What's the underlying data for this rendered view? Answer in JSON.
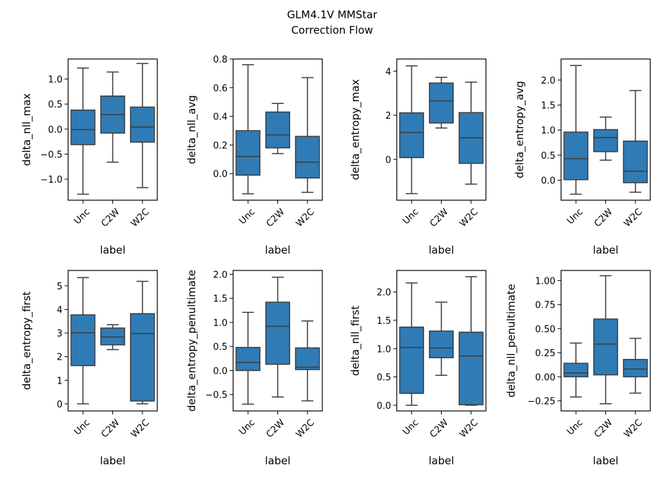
{
  "title": "GLM4.1V MMStar",
  "subtitle": "Correction Flow",
  "colors": {
    "box_fill": "#2f7bb5",
    "line": "#3d3d3d",
    "axis": "#000000"
  },
  "chart_data": [
    {
      "type": "box",
      "ylabel": "delta_nll_max",
      "xlabel": "label",
      "categories": [
        "Unc",
        "C2W",
        "W2C"
      ],
      "ylim": [
        -1.42,
        1.4
      ],
      "yticks": [
        -1.0,
        -0.5,
        0.0,
        0.5,
        1.0
      ],
      "ytick_labels": [
        "−1.0",
        "−0.5",
        "0.0",
        "0.5",
        "1.0"
      ],
      "boxes": [
        {
          "whislo": -1.3,
          "q1": -0.31,
          "med": -0.01,
          "q3": 0.38,
          "whishi": 1.22
        },
        {
          "whislo": -0.66,
          "q1": -0.08,
          "med": 0.29,
          "q3": 0.66,
          "whishi": 1.14
        },
        {
          "whislo": -1.17,
          "q1": -0.26,
          "med": 0.04,
          "q3": 0.44,
          "whishi": 1.31
        }
      ]
    },
    {
      "type": "box",
      "ylabel": "delta_nll_avg",
      "xlabel": "label",
      "categories": [
        "Unc",
        "C2W",
        "W2C"
      ],
      "ylim": [
        -0.185,
        0.8
      ],
      "yticks": [
        0.0,
        0.2,
        0.4,
        0.6,
        0.8
      ],
      "ytick_labels": [
        "0.0",
        "0.2",
        "0.4",
        "0.6",
        "0.8"
      ],
      "boxes": [
        {
          "whislo": -0.14,
          "q1": -0.01,
          "med": 0.12,
          "q3": 0.3,
          "whishi": 0.76
        },
        {
          "whislo": 0.14,
          "q1": 0.18,
          "med": 0.27,
          "q3": 0.43,
          "whishi": 0.49
        },
        {
          "whislo": -0.13,
          "q1": -0.03,
          "med": 0.08,
          "q3": 0.26,
          "whishi": 0.67
        }
      ]
    },
    {
      "type": "box",
      "ylabel": "delta_entropy_max",
      "xlabel": "label",
      "categories": [
        "Unc",
        "C2W",
        "W2C"
      ],
      "ylim": [
        -1.85,
        4.55
      ],
      "yticks": [
        0,
        2,
        4
      ],
      "ytick_labels": [
        "0",
        "2",
        "4"
      ],
      "boxes": [
        {
          "whislo": -1.55,
          "q1": 0.08,
          "med": 1.22,
          "q3": 2.11,
          "whishi": 4.24
        },
        {
          "whislo": 1.42,
          "q1": 1.65,
          "med": 2.65,
          "q3": 3.46,
          "whishi": 3.72
        },
        {
          "whislo": -1.12,
          "q1": -0.18,
          "med": 0.98,
          "q3": 2.12,
          "whishi": 3.5
        }
      ]
    },
    {
      "type": "box",
      "ylabel": "delta_entropy_avg",
      "xlabel": "label",
      "categories": [
        "Unc",
        "C2W",
        "W2C"
      ],
      "ylim": [
        -0.4,
        2.42
      ],
      "yticks": [
        0.0,
        0.5,
        1.0,
        1.5,
        2.0
      ],
      "ytick_labels": [
        "0.0",
        "0.5",
        "1.0",
        "1.5",
        "2.0"
      ],
      "boxes": [
        {
          "whislo": -0.28,
          "q1": 0.01,
          "med": 0.43,
          "q3": 0.96,
          "whishi": 2.29
        },
        {
          "whislo": 0.4,
          "q1": 0.57,
          "med": 0.85,
          "q3": 1.01,
          "whishi": 1.26
        },
        {
          "whislo": -0.24,
          "q1": -0.05,
          "med": 0.18,
          "q3": 0.78,
          "whishi": 1.79
        }
      ]
    },
    {
      "type": "box",
      "ylabel": "delta_entropy_first",
      "xlabel": "label",
      "categories": [
        "Unc",
        "C2W",
        "W2C"
      ],
      "ylim": [
        -0.3,
        5.65
      ],
      "yticks": [
        0,
        1,
        2,
        3,
        4,
        5
      ],
      "ytick_labels": [
        "0",
        "1",
        "2",
        "3",
        "4",
        "5"
      ],
      "boxes": [
        {
          "whislo": 0.0,
          "q1": 1.62,
          "med": 3.01,
          "q3": 3.77,
          "whishi": 5.35
        },
        {
          "whislo": 2.3,
          "q1": 2.5,
          "med": 2.83,
          "q3": 3.21,
          "whishi": 3.35
        },
        {
          "whislo": 0.0,
          "q1": 0.12,
          "med": 2.98,
          "q3": 3.82,
          "whishi": 5.19
        }
      ]
    },
    {
      "type": "box",
      "ylabel": "delta_entropy_penultimate",
      "xlabel": "label",
      "categories": [
        "Unc",
        "C2W",
        "W2C"
      ],
      "ylim": [
        -0.84,
        2.08
      ],
      "yticks": [
        -0.5,
        0.0,
        0.5,
        1.0,
        1.5,
        2.0
      ],
      "ytick_labels": [
        "−0.5",
        "0.0",
        "0.5",
        "1.0",
        "1.5",
        "2.0"
      ],
      "boxes": [
        {
          "whislo": -0.7,
          "q1": 0.0,
          "med": 0.17,
          "q3": 0.48,
          "whishi": 1.21
        },
        {
          "whislo": -0.55,
          "q1": 0.13,
          "med": 0.92,
          "q3": 1.42,
          "whishi": 1.94
        },
        {
          "whislo": -0.63,
          "q1": 0.02,
          "med": 0.07,
          "q3": 0.47,
          "whishi": 1.03
        }
      ]
    },
    {
      "type": "box",
      "ylabel": "delta_nll_first",
      "xlabel": "label",
      "categories": [
        "Unc",
        "C2W",
        "W2C"
      ],
      "ylim": [
        -0.1,
        2.38
      ],
      "yticks": [
        0.0,
        0.5,
        1.0,
        1.5,
        2.0
      ],
      "ytick_labels": [
        "0.0",
        "0.5",
        "1.0",
        "1.5",
        "2.0"
      ],
      "boxes": [
        {
          "whislo": 0.0,
          "q1": 0.21,
          "med": 1.02,
          "q3": 1.38,
          "whishi": 2.16
        },
        {
          "whislo": 0.53,
          "q1": 0.84,
          "med": 1.01,
          "q3": 1.31,
          "whishi": 1.82
        },
        {
          "whislo": 0.0,
          "q1": 0.01,
          "med": 0.87,
          "q3": 1.29,
          "whishi": 2.27
        }
      ]
    },
    {
      "type": "box",
      "ylabel": "delta_nll_penultimate",
      "xlabel": "label",
      "categories": [
        "Unc",
        "C2W",
        "W2C"
      ],
      "ylim": [
        -0.355,
        1.105
      ],
      "yticks": [
        -0.25,
        0.0,
        0.25,
        0.5,
        0.75,
        1.0
      ],
      "ytick_labels": [
        "−0.25",
        "0.00",
        "0.25",
        "0.50",
        "0.75",
        "1.00"
      ],
      "boxes": [
        {
          "whislo": -0.21,
          "q1": 0.0,
          "med": 0.04,
          "q3": 0.14,
          "whishi": 0.35
        },
        {
          "whislo": -0.28,
          "q1": 0.02,
          "med": 0.34,
          "q3": 0.6,
          "whishi": 1.05
        },
        {
          "whislo": -0.17,
          "q1": 0.0,
          "med": 0.08,
          "q3": 0.18,
          "whishi": 0.4
        }
      ]
    }
  ]
}
